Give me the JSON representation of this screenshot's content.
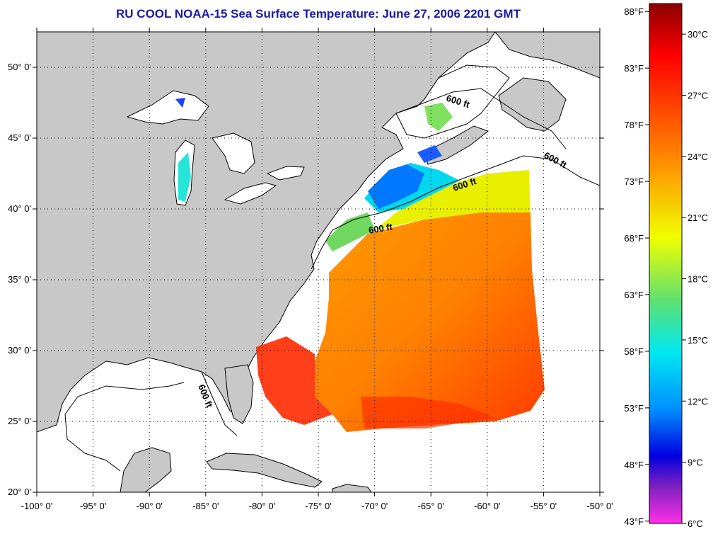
{
  "title": "RU COOL  NOAA-15  Sea Surface Temperature:  June 27, 2006 2201 GMT",
  "map": {
    "lon_labels": [
      "-100° 0'",
      "-95° 0'",
      "-90° 0'",
      "-85° 0'",
      "-80° 0'",
      "-75° 0'",
      "-70° 0'",
      "-65° 0'",
      "-60° 0'",
      "-55° 0'",
      "-50° 0'"
    ],
    "lat_labels": [
      "20° 0'",
      "25° 0'",
      "30° 0'",
      "35° 0'",
      "40° 0'",
      "45° 0'",
      "50° 0'"
    ],
    "lon_range": [
      -100,
      -50
    ],
    "lat_range": [
      20,
      52.5
    ],
    "isobath_label": "600 ft",
    "colors": {
      "land": "#c8c8c8",
      "ocean_no_data": "#ffffff",
      "coastline": "#000000",
      "grid": "#000000"
    }
  },
  "colorbar": {
    "f_labels": [
      "88°F",
      "83°F",
      "78°F",
      "73°F",
      "68°F",
      "63°F",
      "58°F",
      "53°F",
      "48°F",
      "43°F"
    ],
    "c_labels": [
      "30°C",
      "27°C",
      "24°C",
      "21°C",
      "18°C",
      "15°C",
      "12°C",
      "9°C",
      "6°C"
    ],
    "celsius_range": [
      6,
      31.5
    ],
    "stops": [
      "#8b0000",
      "#ff0000",
      "#ff7a00",
      "#ffd000",
      "#e8f000",
      "#7fe050",
      "#00f0e0",
      "#00b8ff",
      "#0030ff",
      "#0000c8",
      "#7a30d0",
      "#ff30e0"
    ]
  }
}
